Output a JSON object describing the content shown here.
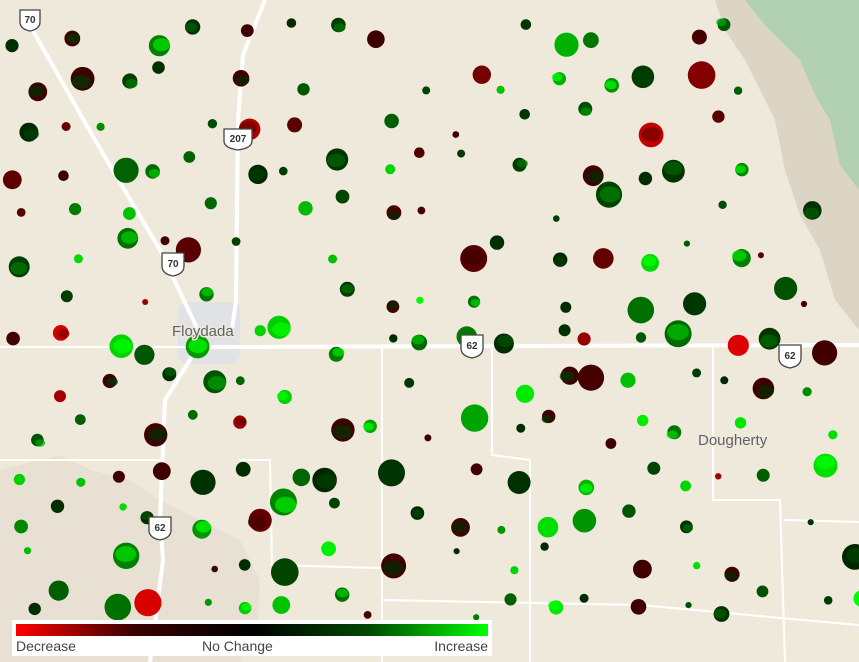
{
  "map": {
    "places": [
      "Floydada",
      "Dougherty"
    ],
    "shields": [
      "70",
      "207",
      "70",
      "62",
      "62",
      "62"
    ]
  },
  "legend": {
    "left": "Decrease",
    "middle": "No Change",
    "right": "Increase",
    "colors": [
      "#ff0000",
      "#3a0000",
      "#000000",
      "#004a00",
      "#00ff00"
    ]
  },
  "palette": {
    "land": "#efe9dc",
    "relief": "#a9cfb1",
    "road": "#ffffff"
  }
}
